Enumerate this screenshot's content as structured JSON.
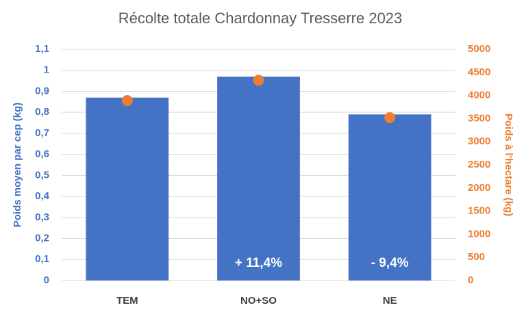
{
  "chart_data": {
    "type": "bar",
    "title": "Récolte totale Chardonnay Tresserre 2023",
    "ylabel": "Poids moyen par cep (kg)",
    "y2label": "Poids à l'hectare (kg)",
    "categories": [
      "TEM",
      "NO+SO",
      "NE"
    ],
    "series": [
      {
        "type": "bar",
        "color": "#4472c4",
        "values": [
          0.87,
          0.97,
          0.79
        ]
      },
      {
        "type": "scatter",
        "axis": "y2",
        "color": "#ed7d31",
        "values": [
          3890,
          4330,
          3520
        ]
      }
    ],
    "annotations": [
      null,
      "+ 11,4%",
      "- 9,4%"
    ],
    "ylim": [
      0,
      1.1
    ],
    "yticks": [
      0,
      {
        "value": 0.1,
        "label": "0,1"
      },
      {
        "value": 0.2,
        "label": "0,2"
      },
      {
        "value": 0.3,
        "label": "0,3"
      },
      {
        "value": 0.4,
        "label": "0,4"
      },
      {
        "value": 0.5,
        "label": "0,5"
      },
      {
        "value": 0.6,
        "label": "0,6"
      },
      {
        "value": 0.7,
        "label": "0,7"
      },
      {
        "value": 0.8,
        "label": "0,8"
      },
      {
        "value": 0.9,
        "label": "0,9"
      },
      1,
      {
        "value": 1.1,
        "label": "1,1"
      }
    ],
    "y2lim": [
      0,
      5000
    ],
    "y2ticks": [
      0,
      500,
      1000,
      1500,
      2000,
      2500,
      3000,
      3500,
      4000,
      4500,
      5000
    ],
    "grid": true
  }
}
